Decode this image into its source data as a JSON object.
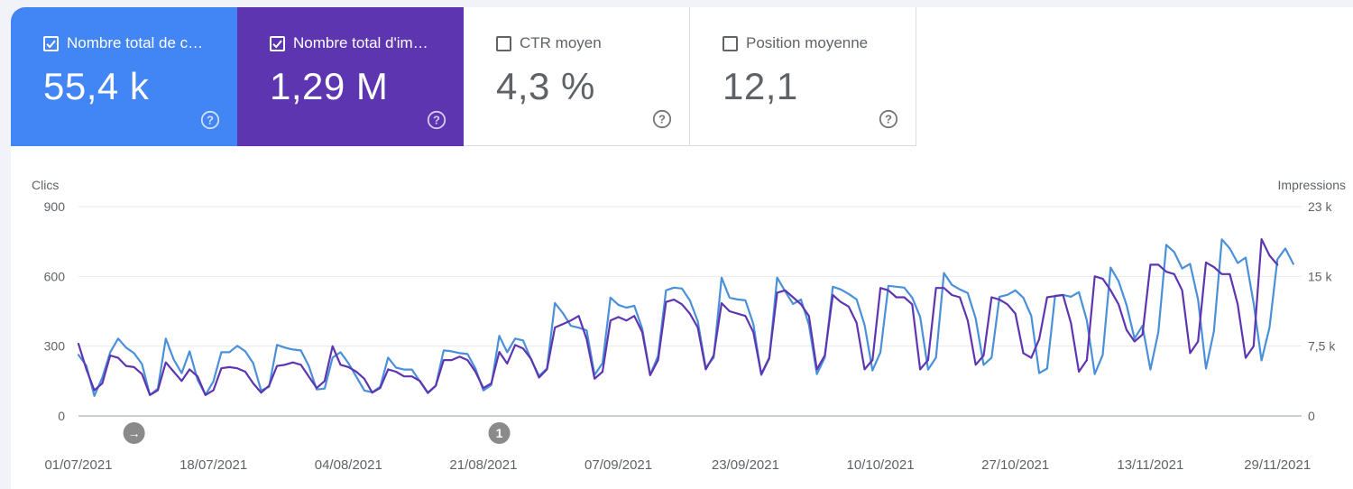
{
  "metrics": [
    {
      "label": "Nombre total de c…",
      "value": "55,4 k",
      "checked": true,
      "bg": "#4285f4",
      "fg": "#ffffff"
    },
    {
      "label": "Nombre total d'im…",
      "value": "1,29 M",
      "checked": true,
      "bg": "#5e35b1",
      "fg": "#ffffff"
    },
    {
      "label": "CTR moyen",
      "value": "4,3 %",
      "checked": false,
      "bg": "#ffffff",
      "fg": "#5f6368"
    },
    {
      "label": "Position moyenne",
      "value": "12,1",
      "checked": false,
      "bg": "#ffffff",
      "fg": "#5f6368"
    }
  ],
  "colors": {
    "clicks": "#5e35b1",
    "impressions": "#4a90d9"
  },
  "chart_data": {
    "type": "line",
    "y_left": {
      "label": "Clics",
      "ticks": [
        "0",
        "300",
        "600",
        "900"
      ],
      "lim": [
        0,
        900
      ]
    },
    "y_right": {
      "label": "Impressions",
      "ticks": [
        "0",
        "7,5 k",
        "15 k",
        "23 k"
      ],
      "lim": [
        0,
        23000
      ]
    },
    "grid": true,
    "x_start": "01/07/2021",
    "x_end": "30/11/2021",
    "x_tick_labels": [
      "01/07/2021",
      "18/07/2021",
      "04/08/2021",
      "21/08/2021",
      "07/09/2021",
      "23/09/2021",
      "10/10/2021",
      "27/10/2021",
      "13/11/2021",
      "29/11/2021"
    ],
    "annotations": [
      {
        "date": "08/07/2021",
        "label": "→"
      },
      {
        "date": "23/08/2021",
        "label": "1"
      }
    ],
    "series": [
      {
        "name": "Clics",
        "axis": "left",
        "values": [
          310,
          200,
          110,
          140,
          260,
          250,
          215,
          210,
          180,
          90,
          110,
          230,
          190,
          150,
          200,
          170,
          90,
          110,
          205,
          210,
          205,
          190,
          140,
          100,
          130,
          215,
          220,
          230,
          220,
          170,
          120,
          150,
          300,
          220,
          210,
          190,
          160,
          100,
          120,
          200,
          190,
          170,
          170,
          150,
          100,
          130,
          240,
          240,
          255,
          240,
          190,
          120,
          140,
          275,
          225,
          305,
          290,
          245,
          165,
          200,
          380,
          395,
          410,
          430,
          330,
          160,
          190,
          410,
          425,
          410,
          430,
          360,
          175,
          240,
          490,
          500,
          480,
          440,
          380,
          200,
          260,
          485,
          450,
          440,
          430,
          360,
          180,
          250,
          530,
          540,
          510,
          480,
          430,
          200,
          260,
          520,
          490,
          470,
          400,
          200,
          240,
          550,
          540,
          510,
          510,
          480,
          200,
          240,
          550,
          550,
          520,
          510,
          410,
          220,
          260,
          510,
          500,
          480,
          440,
          270,
          250,
          330,
          510,
          515,
          520,
          400,
          190,
          240,
          600,
          590,
          540,
          480,
          370,
          320,
          350,
          650,
          650,
          620,
          610,
          540,
          270,
          320,
          660,
          640,
          610,
          610,
          480,
          250,
          300,
          760,
          690,
          650
        ]
      },
      {
        "name": "Impressions",
        "axis": "right",
        "values": [
          6700,
          5500,
          2200,
          4200,
          7000,
          8500,
          7500,
          6900,
          5700,
          2300,
          3000,
          8500,
          6200,
          4700,
          7100,
          4000,
          2300,
          3800,
          7000,
          7000,
          7700,
          7100,
          5800,
          2800,
          3200,
          7800,
          7500,
          7300,
          7200,
          5500,
          2900,
          3000,
          6400,
          7000,
          5800,
          4300,
          2800,
          2600,
          3200,
          6400,
          5300,
          5100,
          5100,
          3800,
          2500,
          3300,
          7200,
          7100,
          6900,
          6800,
          5200,
          2800,
          3400,
          8800,
          7000,
          8500,
          8300,
          6200,
          4400,
          5200,
          12400,
          11300,
          9900,
          9700,
          9400,
          4500,
          5800,
          13000,
          12200,
          11900,
          12100,
          9600,
          4500,
          6600,
          13800,
          14100,
          14000,
          12700,
          10400,
          5300,
          6400,
          15200,
          13000,
          12800,
          12700,
          10100,
          4500,
          6300,
          15200,
          13700,
          12300,
          12800,
          10000,
          4600,
          6400,
          14200,
          13900,
          13400,
          12800,
          10000,
          5000,
          7000,
          14300,
          14200,
          14100,
          13000,
          10900,
          5100,
          6400,
          15700,
          14400,
          13900,
          13500,
          10700,
          5600,
          6400,
          13100,
          13300,
          13800,
          13000,
          11000,
          4700,
          5200,
          13200,
          13300,
          13100,
          13600,
          10500,
          4600,
          6700,
          16300,
          14800,
          12200,
          8500,
          9900,
          5100,
          9200,
          18800,
          18000,
          16200,
          16700,
          12800,
          5200,
          9300,
          19400,
          18400,
          16800,
          17400,
          12400,
          6100,
          9700,
          17200,
          18400,
          16700
        ]
      }
    ]
  }
}
